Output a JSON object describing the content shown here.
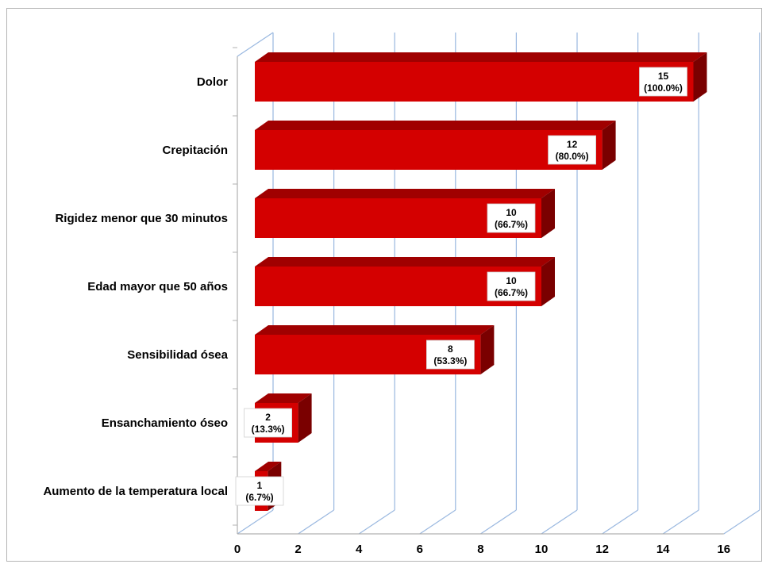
{
  "chart_data": {
    "type": "bar",
    "orientation": "horizontal",
    "three_d": true,
    "categories": [
      "Dolor",
      "Crepitación",
      "Rigidez menor que 30 minutos",
      "Edad mayor que 50 años",
      "Sensibilidad ósea",
      "Ensanchamiento óseo",
      "Aumento de la temperatura local"
    ],
    "values": [
      15,
      12,
      10,
      10,
      8,
      2,
      1
    ],
    "value_labels": [
      [
        "15",
        "(100.0%)"
      ],
      [
        "12",
        "(80.0%)"
      ],
      [
        "10",
        "(66.7%)"
      ],
      [
        "10",
        "(66.7%)"
      ],
      [
        "8",
        "(53.3%)"
      ],
      [
        "2",
        "(13.3%)"
      ],
      [
        "1",
        "(6.7%)"
      ]
    ],
    "x_ticks": [
      "0",
      "2",
      "4",
      "6",
      "8",
      "10",
      "12",
      "14",
      "16"
    ],
    "xlim": [
      0,
      16
    ],
    "grid": true,
    "legend": "none",
    "colors": {
      "bar_front": "#d40000",
      "bar_top": "#a00000",
      "bar_side": "#7a0000",
      "grid": "#9ab8e0",
      "axis": "#b0b0b0"
    }
  }
}
